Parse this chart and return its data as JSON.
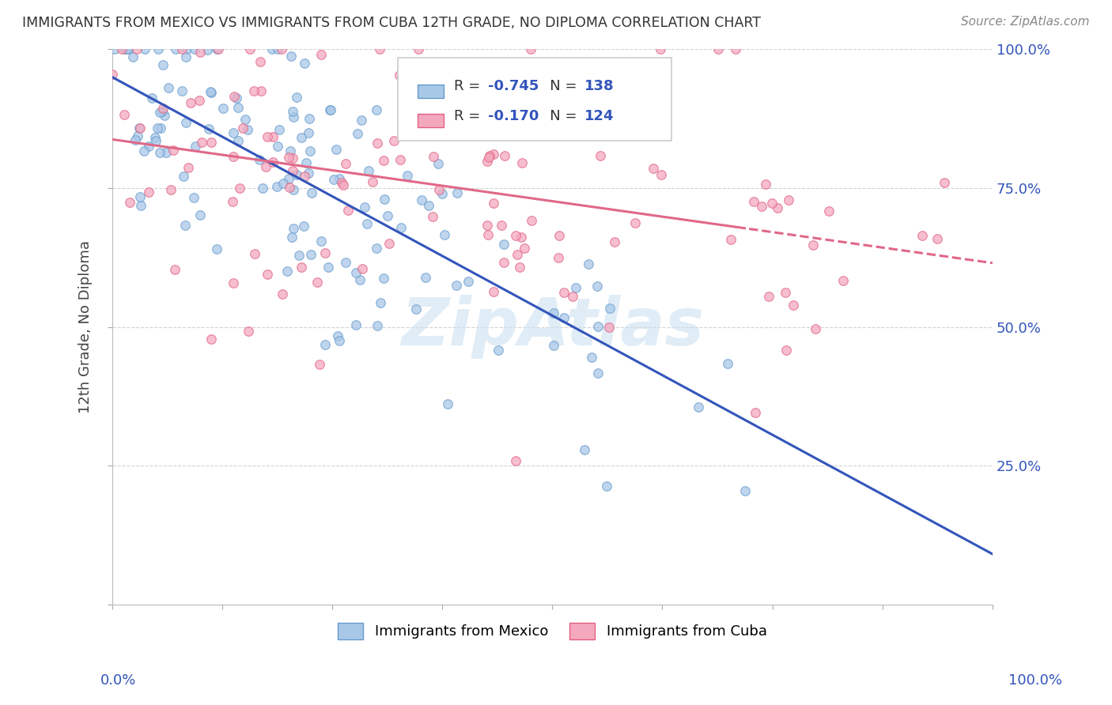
{
  "title": "IMMIGRANTS FROM MEXICO VS IMMIGRANTS FROM CUBA 12TH GRADE, NO DIPLOMA CORRELATION CHART",
  "source": "Source: ZipAtlas.com",
  "ylabel": "12th Grade, No Diploma",
  "legend_mexico": {
    "label": "Immigrants from Mexico",
    "R": "-0.745",
    "N": "138"
  },
  "legend_cuba": {
    "label": "Immigrants from Cuba",
    "R": "-0.170",
    "N": "124"
  },
  "background_color": "#ffffff",
  "grid_color": "#c8c8c8",
  "mexico_scatter_fill": "#a8c8e8",
  "mexico_scatter_edge": "#6699cc",
  "cuba_scatter_fill": "#f4a8be",
  "cuba_scatter_edge": "#e06080",
  "mexico_line_color": "#3355bb",
  "cuba_line_color": "#e06888",
  "r_n_color": "#3355bb",
  "label_color": "#555555",
  "title_color": "#333333",
  "source_color": "#888888",
  "ylabel_color": "#444444",
  "tick_label_color": "#3355bb",
  "watermark_color": "#cce0f0",
  "scatter_size": 70,
  "scatter_alpha": 0.75,
  "scatter_linewidth": 0.8,
  "seed": 12
}
